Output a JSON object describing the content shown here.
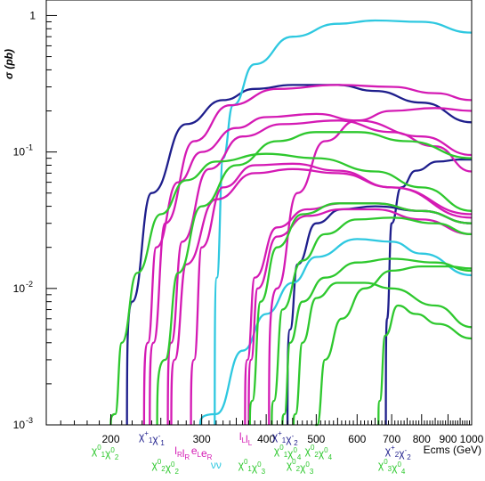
{
  "chart_data": {
    "type": "line",
    "title": "",
    "ylabel": "σ (pb)",
    "xlabel": "Ecms (GeV)",
    "xscale": "log",
    "yscale": "log",
    "xlim": [
      150,
      1000
    ],
    "ylim": [
      0.001,
      1.3
    ],
    "grid": false,
    "legend": "none",
    "x_ticks": [
      {
        "value": 200,
        "label": "200"
      },
      {
        "value": 300,
        "label": "300"
      },
      {
        "value": 400,
        "label": "400"
      },
      {
        "value": 500,
        "label": "500"
      },
      {
        "value": 600,
        "label": "600"
      },
      {
        "value": 700,
        "label": "700"
      },
      {
        "value": 800,
        "label": "800"
      },
      {
        "value": 900,
        "label": "900"
      },
      {
        "value": 1000,
        "label": "1000"
      }
    ],
    "y_ticks": [
      {
        "value": 1,
        "base": "1",
        "exp": ""
      },
      {
        "value": 0.1,
        "base": "10",
        "exp": "-1"
      },
      {
        "value": 0.01,
        "base": "10",
        "exp": "-2"
      },
      {
        "value": 0.001,
        "base": "10",
        "exp": "-3"
      }
    ],
    "colors": {
      "navy": "#1e1e8c",
      "magenta": "#d41ab4",
      "cyan": "#2ec8e0",
      "green": "#2ec82e",
      "axis": "#000000"
    },
    "threshold_labels": [
      {
        "x": 195,
        "row": 1,
        "color": "green",
        "sup": [
          "0",
          "0"
        ],
        "sub": [
          "1",
          "2"
        ]
      },
      {
        "x": 240,
        "row": 0,
        "color": "navy",
        "sup": [
          "+",
          "-"
        ],
        "sub": [
          "1",
          "1"
        ]
      },
      {
        "x": 255,
        "row": 2,
        "color": "green",
        "sup": [
          "0",
          "0"
        ],
        "sub": [
          "2",
          "2"
        ]
      },
      {
        "x": 275,
        "row": 1,
        "color": "magenta",
        "sup": [
          "",
          ""
        ],
        "sub": [
          "R",
          "R"
        ],
        "glyph": "l"
      },
      {
        "x": 300,
        "row": 1,
        "color": "magenta",
        "sup": [
          "",
          ""
        ],
        "sub": [
          "L",
          "R"
        ],
        "glyph": "e"
      },
      {
        "x": 320,
        "row": 2,
        "color": "cyan",
        "text": "νν"
      },
      {
        "x": 365,
        "row": 0,
        "color": "magenta",
        "sup": [
          "",
          ""
        ],
        "sub": [
          "L",
          "L"
        ],
        "glyph": "l"
      },
      {
        "x": 375,
        "row": 2,
        "color": "green",
        "sup": [
          "0",
          "0"
        ],
        "sub": [
          "1",
          "3"
        ]
      },
      {
        "x": 435,
        "row": 0,
        "color": "navy",
        "sup": [
          "+",
          "-"
        ],
        "sub": [
          "1",
          "2"
        ]
      },
      {
        "x": 440,
        "row": 1,
        "color": "green",
        "sup": [
          "0",
          "0"
        ],
        "sub": [
          "1",
          "4"
        ]
      },
      {
        "x": 465,
        "row": 2,
        "color": "green",
        "sup": [
          "0",
          "0"
        ],
        "sub": [
          "2",
          "3"
        ]
      },
      {
        "x": 505,
        "row": 1,
        "color": "green",
        "sup": [
          "0",
          "0"
        ],
        "sub": [
          "2",
          "4"
        ]
      },
      {
        "x": 720,
        "row": 1,
        "color": "navy",
        "sup": [
          "+",
          "-"
        ],
        "sub": [
          "2",
          "2"
        ]
      },
      {
        "x": 700,
        "row": 2,
        "color": "green",
        "sup": [
          "0",
          "0"
        ],
        "sub": [
          "3",
          "4"
        ]
      }
    ],
    "series": [
      {
        "color": "navy",
        "threshold": 215,
        "x": [
          220,
          240,
          280,
          330,
          380,
          450,
          550,
          650,
          800,
          1000
        ],
        "y": [
          0.008,
          0.05,
          0.16,
          0.24,
          0.29,
          0.31,
          0.31,
          0.28,
          0.23,
          0.165
        ]
      },
      {
        "color": "navy",
        "threshold": 440,
        "x": [
          445,
          460,
          500,
          560,
          650,
          800,
          1000
        ],
        "y": [
          0.005,
          0.015,
          0.03,
          0.038,
          0.04,
          0.037,
          0.03
        ]
      },
      {
        "color": "navy",
        "threshold": 682,
        "x": [
          686,
          700,
          730,
          780,
          860,
          950,
          1000
        ],
        "y": [
          0.006,
          0.03,
          0.055,
          0.073,
          0.085,
          0.088,
          0.088
        ]
      },
      {
        "color": "cyan",
        "threshold": 318,
        "x": [
          321,
          330,
          345,
          380,
          450,
          550,
          650,
          800,
          1000
        ],
        "y": [
          0.012,
          0.09,
          0.22,
          0.44,
          0.7,
          0.87,
          0.92,
          0.9,
          0.75
        ]
      },
      {
        "color": "cyan",
        "threshold": 298,
        "x": [
          320,
          360,
          400,
          450,
          500,
          600,
          700,
          800,
          1000
        ],
        "y": [
          0.0012,
          0.0035,
          0.0065,
          0.011,
          0.017,
          0.023,
          0.022,
          0.018,
          0.0125
        ]
      },
      {
        "color": "magenta",
        "threshold": 232,
        "x": [
          236,
          245,
          270,
          300,
          350,
          400,
          500,
          600,
          800,
          1000
        ],
        "y": [
          0.004,
          0.02,
          0.06,
          0.1,
          0.15,
          0.18,
          0.19,
          0.17,
          0.13,
          0.095
        ]
      },
      {
        "color": "magenta",
        "threshold": 238,
        "x": [
          242,
          255,
          290,
          340,
          420,
          550,
          700,
          850,
          1000
        ],
        "y": [
          0.004,
          0.03,
          0.12,
          0.22,
          0.29,
          0.31,
          0.3,
          0.27,
          0.24
        ]
      },
      {
        "color": "magenta",
        "threshold": 258,
        "x": [
          262,
          275,
          310,
          360,
          430,
          550,
          700,
          850,
          1000
        ],
        "y": [
          0.004,
          0.022,
          0.075,
          0.13,
          0.16,
          0.17,
          0.14,
          0.11,
          0.072
        ]
      },
      {
        "color": "magenta",
        "threshold": 262,
        "x": [
          266,
          280,
          320,
          380,
          450,
          550,
          700,
          1000
        ],
        "y": [
          0.003,
          0.015,
          0.045,
          0.07,
          0.075,
          0.07,
          0.055,
          0.035
        ]
      },
      {
        "color": "magenta",
        "threshold": 286,
        "x": [
          290,
          300,
          330,
          380,
          450,
          550,
          700,
          1000
        ],
        "y": [
          0.003,
          0.02,
          0.055,
          0.08,
          0.082,
          0.073,
          0.055,
          0.033
        ]
      },
      {
        "color": "magenta",
        "threshold": 364,
        "x": [
          368,
          380,
          420,
          480,
          560,
          650,
          800,
          1000
        ],
        "y": [
          0.003,
          0.012,
          0.028,
          0.038,
          0.042,
          0.042,
          0.037,
          0.03
        ]
      },
      {
        "color": "magenta",
        "threshold": 370,
        "x": [
          374,
          385,
          420,
          480,
          560,
          650,
          800,
          1000
        ],
        "y": [
          0.003,
          0.01,
          0.024,
          0.034,
          0.038,
          0.038,
          0.032,
          0.025
        ]
      },
      {
        "color": "magenta",
        "threshold": 405,
        "x": [
          420,
          460,
          520,
          600,
          700,
          850,
          1000
        ],
        "y": [
          0.01,
          0.05,
          0.12,
          0.17,
          0.2,
          0.21,
          0.2
        ]
      },
      {
        "color": "green",
        "threshold": 200,
        "x": [
          204,
          210,
          225,
          250,
          280,
          320,
          400,
          500,
          650,
          800,
          1000
        ],
        "y": [
          0.0012,
          0.004,
          0.013,
          0.035,
          0.062,
          0.085,
          0.097,
          0.09,
          0.072,
          0.055,
          0.037
        ]
      },
      {
        "color": "green",
        "threshold": 246,
        "x": [
          255,
          270,
          300,
          350,
          420,
          500,
          600,
          750,
          1000
        ],
        "y": [
          0.003,
          0.013,
          0.04,
          0.08,
          0.12,
          0.14,
          0.14,
          0.12,
          0.09
        ]
      },
      {
        "color": "green",
        "threshold": 372,
        "x": [
          376,
          390,
          420,
          470,
          550,
          650,
          800,
          1000
        ],
        "y": [
          0.0015,
          0.008,
          0.02,
          0.035,
          0.042,
          0.042,
          0.037,
          0.03
        ]
      },
      {
        "color": "green",
        "threshold": 410,
        "x": [
          414,
          430,
          470,
          520,
          600,
          700,
          850,
          1000
        ],
        "y": [
          0.0015,
          0.007,
          0.016,
          0.025,
          0.032,
          0.033,
          0.03,
          0.025
        ]
      },
      {
        "color": "green",
        "threshold": 430,
        "x": [
          434,
          445,
          470,
          520,
          600,
          700,
          850,
          1000
        ],
        "y": [
          0.0012,
          0.004,
          0.008,
          0.012,
          0.0155,
          0.0165,
          0.0155,
          0.0135
        ]
      },
      {
        "color": "green",
        "threshold": 452,
        "x": [
          456,
          470,
          500,
          550,
          620,
          700,
          850,
          1000
        ],
        "y": [
          0.0012,
          0.004,
          0.0085,
          0.011,
          0.011,
          0.01,
          0.0075,
          0.0052
        ]
      },
      {
        "color": "green",
        "threshold": 498,
        "x": [
          502,
          520,
          560,
          620,
          700,
          800,
          900,
          1000
        ],
        "y": [
          0.001,
          0.003,
          0.006,
          0.01,
          0.0135,
          0.0145,
          0.0145,
          0.014
        ]
      },
      {
        "color": "green",
        "threshold": 660,
        "x": [
          664,
          680,
          720,
          780,
          860,
          1000
        ],
        "y": [
          0.0015,
          0.0045,
          0.0075,
          0.0065,
          0.0055,
          0.0043
        ]
      }
    ]
  }
}
